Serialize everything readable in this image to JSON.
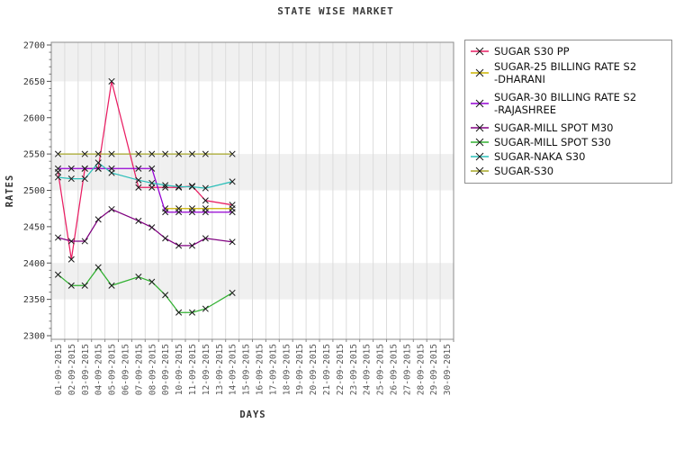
{
  "chart_data": {
    "type": "line",
    "title": "STATE WISE MARKET",
    "xlabel": "DAYS",
    "ylabel": "RATES",
    "ylim": [
      2300,
      2700
    ],
    "y_tick_step": 50,
    "y_minor_tick_step": 10,
    "grid": true,
    "legend_position": "right",
    "band_color": "#f0f0f0",
    "gray_bands": [
      [
        2700,
        2650
      ],
      [
        2550,
        2500
      ],
      [
        2400,
        2350
      ]
    ],
    "marker": "x",
    "marker_color": "#1a1a1a",
    "x_labels": [
      "01-09-2015",
      "02-09-2015",
      "03-09-2015",
      "04-09-2015",
      "05-09-2015",
      "06-09-2015",
      "07-09-2015",
      "08-09-2015",
      "09-09-2015",
      "10-09-2015",
      "11-09-2015",
      "12-09-2015",
      "13-09-2015",
      "14-09-2015",
      "15-09-2015",
      "16-09-2015",
      "17-09-2015",
      "18-09-2015",
      "19-09-2015",
      "20-09-2015",
      "21-09-2015",
      "22-09-2015",
      "23-09-2015",
      "24-09-2015",
      "25-09-2015",
      "26-09-2015",
      "27-09-2015",
      "28-09-2015",
      "29-09-2015",
      "30-09-2015"
    ],
    "series": [
      {
        "name": "SUGAR S30 PP",
        "label_lines": [
          "SUGAR S30 PP"
        ],
        "color": "#e91e63",
        "values": [
          2525,
          2405,
          2530,
          2530,
          2650,
          null,
          2504,
          2504,
          2504,
          2504,
          2506,
          2486,
          null,
          2480
        ]
      },
      {
        "name": "SUGAR-25 BILLING RATE S2-DHARANI",
        "label_lines": [
          "SUGAR-25 BILLING RATE S2",
          "-DHARANI"
        ],
        "color": "#ccb300",
        "values": [
          null,
          null,
          null,
          null,
          null,
          null,
          null,
          null,
          2475,
          2475,
          2475,
          2475,
          null,
          2475
        ]
      },
      {
        "name": "SUGAR-30 BILLING RATE S2-RAJASHREE",
        "label_lines": [
          "SUGAR-30 BILLING RATE S2",
          "-RAJASHREE"
        ],
        "color": "#9400d3",
        "values": [
          2530,
          2530,
          2530,
          2530,
          2530,
          null,
          2530,
          2530,
          2470,
          2470,
          2470,
          2470,
          null,
          2470
        ]
      },
      {
        "name": "SUGAR-MILL SPOT M30",
        "label_lines": [
          "SUGAR-MILL SPOT M30"
        ],
        "color": "#800080",
        "values": [
          2435,
          2430,
          2430,
          2460,
          2474,
          null,
          2458,
          2449,
          2434,
          2424,
          2424,
          2434,
          null,
          2429
        ]
      },
      {
        "name": "SUGAR-MILL SPOT S30",
        "label_lines": [
          "SUGAR-MILL SPOT S30"
        ],
        "color": "#30b030",
        "values": [
          2384,
          2369,
          2369,
          2394,
          2369,
          null,
          2381,
          2374,
          2356,
          2332,
          2332,
          2337,
          null,
          2359
        ]
      },
      {
        "name": "SUGAR-NAKA S30",
        "label_lines": [
          "SUGAR-NAKA S30"
        ],
        "color": "#2cbfb9",
        "values": [
          2518,
          2516,
          2516,
          2538,
          2524,
          null,
          2514,
          2510,
          2507,
          2505,
          2505,
          2503,
          null,
          2512
        ]
      },
      {
        "name": "SUGAR-S30",
        "label_lines": [
          "SUGAR-S30"
        ],
        "color": "#a6a627",
        "values": [
          2550,
          null,
          2550,
          2550,
          2550,
          null,
          2550,
          2550,
          2550,
          2550,
          2550,
          2550,
          null,
          2550
        ]
      }
    ]
  }
}
